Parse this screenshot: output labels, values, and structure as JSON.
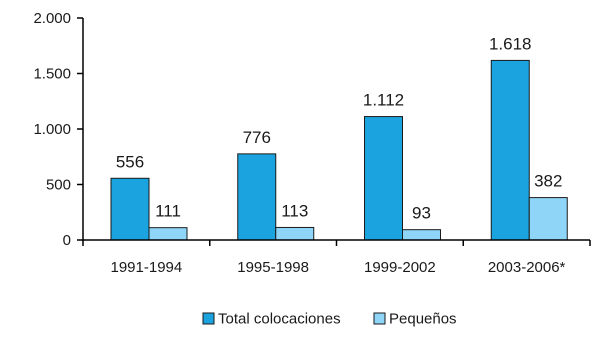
{
  "chart_data": {
    "type": "bar",
    "categories": [
      "1991-1994",
      "1995-1998",
      "1999-2002",
      "2003-2006*"
    ],
    "series": [
      {
        "name": "Total colocaciones",
        "values": [
          556,
          776,
          1112,
          1618
        ],
        "labels": [
          "556",
          "776",
          "1.112",
          "1.618"
        ],
        "color": "#1aa3df"
      },
      {
        "name": "Pequeños",
        "values": [
          111,
          113,
          93,
          382
        ],
        "labels": [
          "111",
          "113",
          "93",
          "382"
        ],
        "color": "#8fd5f7"
      }
    ],
    "yticks": [
      0,
      500,
      1000,
      1500,
      2000
    ],
    "ytick_labels": [
      "0",
      "500",
      "1.000",
      "1.500",
      "2.000"
    ],
    "ylim": [
      0,
      2000
    ],
    "legend_position": "bottom",
    "title": "",
    "xlabel": "",
    "ylabel": ""
  }
}
